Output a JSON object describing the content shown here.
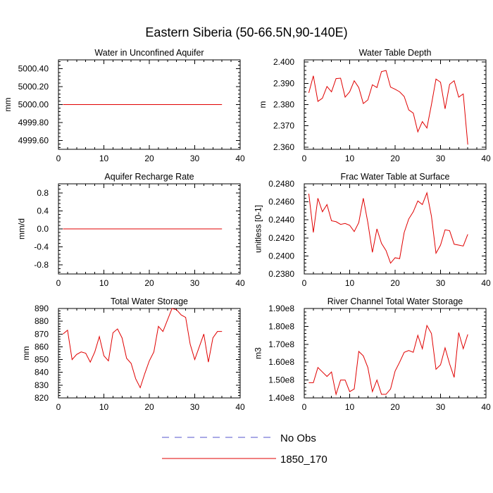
{
  "title": "Eastern Siberia (50-66.5N,90-140E)",
  "legend": [
    {
      "label": "No Obs",
      "color": "#5555cc",
      "dash": true
    },
    {
      "label": "1850_170",
      "color": "#e00000",
      "dash": false
    }
  ],
  "chart_data": [
    {
      "type": "line",
      "title": "Water in Unconfined Aquifer",
      "ylabel": "mm",
      "xlim": [
        0,
        40
      ],
      "ylim": [
        4999.5,
        5000.5
      ],
      "xticks": [
        0,
        10,
        20,
        30,
        40
      ],
      "yticks": [
        4999.6,
        4999.8,
        5000.0,
        5000.2,
        5000.4
      ],
      "ytick_labels": [
        "4999.60",
        "4999.80",
        "5000.00",
        "5000.20",
        "5000.40"
      ],
      "x": [
        1,
        2,
        3,
        4,
        5,
        6,
        7,
        8,
        9,
        10,
        11,
        12,
        13,
        14,
        15,
        16,
        17,
        18,
        19,
        20,
        21,
        22,
        23,
        24,
        25,
        26,
        27,
        28,
        29,
        30,
        31,
        32,
        33,
        34,
        35,
        36
      ],
      "series": [
        {
          "name": "1850_170",
          "values": [
            5000,
            5000,
            5000,
            5000,
            5000,
            5000,
            5000,
            5000,
            5000,
            5000,
            5000,
            5000,
            5000,
            5000,
            5000,
            5000,
            5000,
            5000,
            5000,
            5000,
            5000,
            5000,
            5000,
            5000,
            5000,
            5000,
            5000,
            5000,
            5000,
            5000,
            5000,
            5000,
            5000,
            5000,
            5000,
            5000
          ]
        }
      ]
    },
    {
      "type": "line",
      "title": "Water Table Depth",
      "ylabel": "m",
      "xlim": [
        0,
        40
      ],
      "ylim": [
        2.359,
        2.401
      ],
      "xticks": [
        0,
        10,
        20,
        30,
        40
      ],
      "yticks": [
        2.36,
        2.37,
        2.38,
        2.39,
        2.4
      ],
      "ytick_labels": [
        "2.360",
        "2.370",
        "2.380",
        "2.390",
        "2.400"
      ],
      "x": [
        1,
        2,
        3,
        4,
        5,
        6,
        7,
        8,
        9,
        10,
        11,
        12,
        13,
        14,
        15,
        16,
        17,
        18,
        19,
        20,
        21,
        22,
        23,
        24,
        25,
        26,
        27,
        28,
        29,
        30,
        31,
        32,
        33,
        34,
        35,
        36
      ],
      "series": [
        {
          "name": "1850_170",
          "values": [
            2.3855,
            2.3935,
            2.3815,
            2.383,
            2.3885,
            2.386,
            2.3922,
            2.3924,
            2.3835,
            2.386,
            2.3912,
            2.388,
            2.3805,
            2.3822,
            2.3893,
            2.388,
            2.3955,
            2.396,
            2.3882,
            2.3872,
            2.386,
            2.3838,
            2.3775,
            2.376,
            2.3672,
            2.372,
            2.369,
            2.38,
            2.392,
            2.3905,
            2.378,
            2.3895,
            2.3912,
            2.3835,
            2.385,
            2.3612
          ]
        }
      ]
    },
    {
      "type": "line",
      "title": "Aquifer Recharge Rate",
      "ylabel": "mm/d",
      "xlim": [
        0,
        40
      ],
      "ylim": [
        -1.0,
        1.0
      ],
      "xticks": [
        0,
        10,
        20,
        30,
        40
      ],
      "yticks": [
        -0.8,
        -0.4,
        0.0,
        0.4,
        0.8
      ],
      "ytick_labels": [
        "-0.8",
        "-0.4",
        "0.0",
        "0.4",
        "0.8"
      ],
      "x": [
        1,
        2,
        3,
        4,
        5,
        6,
        7,
        8,
        9,
        10,
        11,
        12,
        13,
        14,
        15,
        16,
        17,
        18,
        19,
        20,
        21,
        22,
        23,
        24,
        25,
        26,
        27,
        28,
        29,
        30,
        31,
        32,
        33,
        34,
        35,
        36
      ],
      "series": [
        {
          "name": "1850_170",
          "values": [
            0,
            0,
            0,
            0,
            0,
            0,
            0,
            0,
            0,
            0,
            0,
            0,
            0,
            0,
            0,
            0,
            0,
            0,
            0,
            0,
            0,
            0,
            0,
            0,
            0,
            0,
            0,
            0,
            0,
            0,
            0,
            0,
            0,
            0,
            0,
            0
          ]
        }
      ]
    },
    {
      "type": "line",
      "title": "Frac Water Table at Surface",
      "ylabel": "unitless [0-1]",
      "xlim": [
        0,
        40
      ],
      "ylim": [
        0.238,
        0.248
      ],
      "xticks": [
        0,
        10,
        20,
        30,
        40
      ],
      "yticks": [
        0.238,
        0.24,
        0.242,
        0.244,
        0.246,
        0.248
      ],
      "ytick_labels": [
        "0.2380",
        "0.2400",
        "0.2420",
        "0.2440",
        "0.2460",
        "0.2480"
      ],
      "x": [
        1,
        2,
        3,
        4,
        5,
        6,
        7,
        8,
        9,
        10,
        11,
        12,
        13,
        14,
        15,
        16,
        17,
        18,
        19,
        20,
        21,
        22,
        23,
        24,
        25,
        26,
        27,
        28,
        29,
        30,
        31,
        32,
        33,
        34,
        35,
        36
      ],
      "series": [
        {
          "name": "1850_170",
          "values": [
            0.2469,
            0.2426,
            0.2464,
            0.2449,
            0.2457,
            0.2439,
            0.2438,
            0.2435,
            0.2436,
            0.2434,
            0.2427,
            0.2437,
            0.2464,
            0.2437,
            0.2404,
            0.243,
            0.2414,
            0.2406,
            0.2392,
            0.2398,
            0.2397,
            0.2426,
            0.2441,
            0.2449,
            0.2461,
            0.2457,
            0.247,
            0.2444,
            0.2403,
            0.2412,
            0.2429,
            0.2428,
            0.2413,
            0.2412,
            0.2411,
            0.2424
          ]
        }
      ]
    },
    {
      "type": "line",
      "title": "Total Water Storage",
      "ylabel": "mm",
      "xlim": [
        0,
        40
      ],
      "ylim": [
        820,
        890
      ],
      "xticks": [
        0,
        10,
        20,
        30,
        40
      ],
      "yticks": [
        820,
        830,
        840,
        850,
        860,
        870,
        880,
        890
      ],
      "ytick_labels": [
        "820",
        "830",
        "840",
        "850",
        "860",
        "870",
        "880",
        "890"
      ],
      "x": [
        1,
        2,
        3,
        4,
        5,
        6,
        7,
        8,
        9,
        10,
        11,
        12,
        13,
        14,
        15,
        16,
        17,
        18,
        19,
        20,
        21,
        22,
        23,
        24,
        25,
        26,
        27,
        28,
        29,
        30,
        31,
        32,
        33,
        34,
        35,
        36
      ],
      "series": [
        {
          "name": "1850_170",
          "values": [
            870,
            873,
            850,
            854,
            856,
            855,
            848,
            856,
            868,
            853,
            849,
            871,
            874,
            867,
            851,
            847,
            835,
            828,
            839,
            849,
            856,
            876,
            872,
            881,
            890,
            889,
            885,
            883,
            862,
            850,
            860,
            870,
            848,
            867,
            872,
            872
          ]
        }
      ]
    },
    {
      "type": "line",
      "title": "River Channel Total Water Storage",
      "ylabel": "m3",
      "xlim": [
        0,
        40
      ],
      "ylim": [
        140000000.0,
        190000000.0
      ],
      "xticks": [
        0,
        10,
        20,
        30,
        40
      ],
      "yticks": [
        140000000.0,
        150000000.0,
        160000000.0,
        170000000.0,
        180000000.0,
        190000000.0
      ],
      "ytick_labels": [
        "1.40e8",
        "1.50e8",
        "1.60e8",
        "1.70e8",
        "1.80e8",
        "1.90e8"
      ],
      "x": [
        1,
        2,
        3,
        4,
        5,
        6,
        7,
        8,
        9,
        10,
        11,
        12,
        13,
        14,
        15,
        16,
        17,
        18,
        19,
        20,
        21,
        22,
        23,
        24,
        25,
        26,
        27,
        28,
        29,
        30,
        31,
        32,
        33,
        34,
        35,
        36
      ],
      "series": [
        {
          "name": "1850_170",
          "values": [
            148500000.0,
            148500000.0,
            157000000.0,
            154500000.0,
            152000000.0,
            154500000.0,
            142000000.0,
            150000000.0,
            150000000.0,
            143500000.0,
            145000000.0,
            166000000.0,
            163500000.0,
            157000000.0,
            143500000.0,
            150000000.0,
            142000000.0,
            142000000.0,
            145000000.0,
            155000000.0,
            160000000.0,
            165500000.0,
            166500000.0,
            165500000.0,
            175000000.0,
            167500000.0,
            180500000.0,
            176000000.0,
            156000000.0,
            158500000.0,
            168000000.0,
            159000000.0,
            151500000.0,
            176500000.0,
            167500000.0,
            175500000.0
          ]
        }
      ]
    }
  ]
}
